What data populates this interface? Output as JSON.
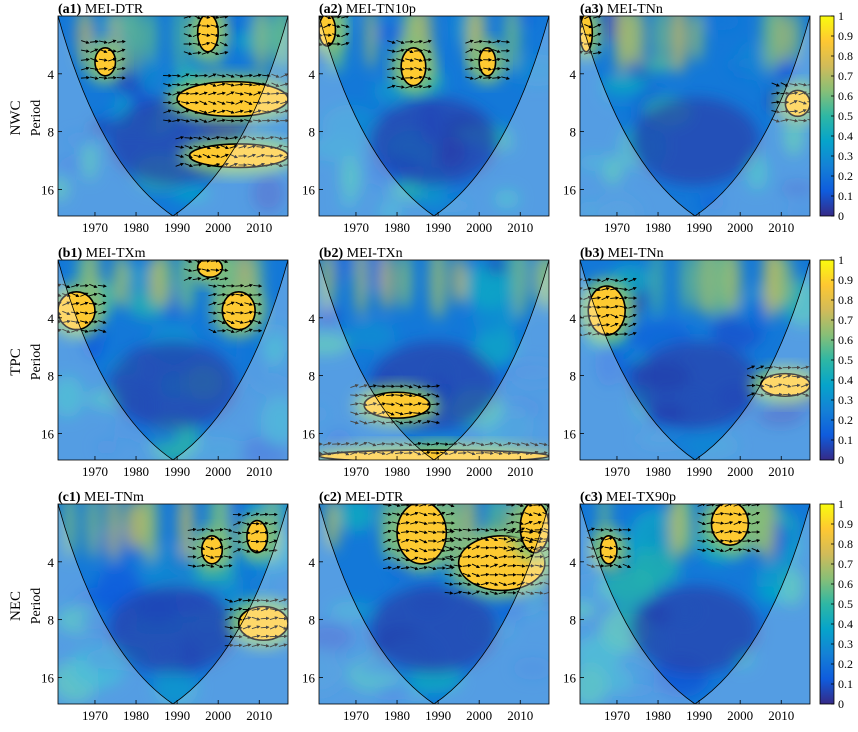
{
  "figure": {
    "row_labels": [
      "NWC",
      "TPC",
      "NEC"
    ],
    "y_axis_label": "Period",
    "colorbar": {
      "ticks": [
        "0",
        "0.1",
        "0.2",
        "0.3",
        "0.4",
        "0.5",
        "0.6",
        "0.7",
        "0.8",
        "0.9",
        "1"
      ]
    },
    "colormap": [
      "#352a87",
      "#0f5cdd",
      "#1481d6",
      "#06a4ca",
      "#2eb7a4",
      "#87bf77",
      "#d1bb59",
      "#fec832",
      "#f9fb0e"
    ]
  },
  "chart_data": [
    {
      "id": "a1",
      "type": "heatmap",
      "title": "(a1) MEI-DTR",
      "tag": "(a1)",
      "name": "MEI-DTR",
      "x_ticks": [
        "1970",
        "1980",
        "1990",
        "2000",
        "2010"
      ],
      "y_ticks": [
        "4",
        "8",
        "16"
      ],
      "xlim": [
        1961,
        2017
      ],
      "ylim": [
        2,
        22
      ],
      "y_scale": "log",
      "colorbar_range": [
        0,
        1
      ],
      "high_coherence_regions": [
        {
          "x": [
            1995,
            2000
          ],
          "period": [
            2,
            3
          ]
        },
        {
          "x": [
            1990,
            2017
          ],
          "period": [
            4.5,
            6.5
          ]
        },
        {
          "x": [
            1993,
            2017
          ],
          "period": [
            9.5,
            12
          ]
        },
        {
          "x": [
            1970,
            1975
          ],
          "period": [
            3,
            4
          ]
        }
      ]
    },
    {
      "id": "a2",
      "type": "heatmap",
      "title": "(a2) MEI-TN10p",
      "tag": "(a2)",
      "name": "MEI-TN10p",
      "x_ticks": [
        "1970",
        "1980",
        "1990",
        "2000",
        "2010"
      ],
      "y_ticks": [
        "4",
        "8",
        "16"
      ],
      "xlim": [
        1961,
        2017
      ],
      "ylim": [
        2,
        22
      ],
      "y_scale": "log",
      "colorbar_range": [
        0,
        1
      ],
      "high_coherence_regions": [
        {
          "x": [
            1981,
            1987
          ],
          "period": [
            3,
            4.5
          ]
        },
        {
          "x": [
            2000,
            2004
          ],
          "period": [
            3,
            4
          ]
        },
        {
          "x": [
            1961,
            1965
          ],
          "period": [
            2,
            2.8
          ]
        }
      ]
    },
    {
      "id": "a3",
      "type": "heatmap",
      "title": "(a3) MEI-TNn",
      "tag": "(a3)",
      "name": "MEI-TNn",
      "x_ticks": [
        "1970",
        "1980",
        "1990",
        "2000",
        "2010"
      ],
      "y_ticks": [
        "4",
        "8",
        "16"
      ],
      "xlim": [
        1961,
        2017
      ],
      "ylim": [
        2,
        22
      ],
      "y_scale": "log",
      "colorbar_range": [
        0,
        1
      ],
      "high_coherence_regions": [
        {
          "x": [
            2011,
            2017
          ],
          "period": [
            5,
            6.5
          ]
        },
        {
          "x": [
            1961,
            1964
          ],
          "period": [
            2,
            3
          ]
        }
      ]
    },
    {
      "id": "b1",
      "type": "heatmap",
      "title": "(b1) MEI-TXm",
      "tag": "(b1)",
      "name": "MEI-TXm",
      "x_ticks": [
        "1970",
        "1980",
        "1990",
        "2000",
        "2010"
      ],
      "y_ticks": [
        "4",
        "8",
        "16"
      ],
      "xlim": [
        1961,
        2017
      ],
      "ylim": [
        2,
        22
      ],
      "y_scale": "log",
      "colorbar_range": [
        0,
        1
      ],
      "high_coherence_regions": [
        {
          "x": [
            1961,
            1970
          ],
          "period": [
            3,
            4.5
          ]
        },
        {
          "x": [
            2001,
            2009
          ],
          "period": [
            3,
            4.5
          ]
        },
        {
          "x": [
            1995,
            2001
          ],
          "period": [
            2,
            2.4
          ]
        }
      ]
    },
    {
      "id": "b2",
      "type": "heatmap",
      "title": "(b2) MEI-TXn",
      "tag": "(b2)",
      "name": "MEI-TXn",
      "x_ticks": [
        "1970",
        "1980",
        "1990",
        "2000",
        "2010"
      ],
      "y_ticks": [
        "4",
        "8",
        "16"
      ],
      "xlim": [
        1961,
        2017
      ],
      "ylim": [
        2,
        22
      ],
      "y_scale": "log",
      "colorbar_range": [
        0,
        1
      ],
      "high_coherence_regions": [
        {
          "x": [
            1972,
            1988
          ],
          "period": [
            10,
            13
          ]
        },
        {
          "x": [
            1961,
            2017
          ],
          "period": [
            20,
            22
          ]
        }
      ]
    },
    {
      "id": "b3",
      "type": "heatmap",
      "title": "(b3) MEI-TNn",
      "tag": "(b3)",
      "name": "MEI-TNn",
      "x_ticks": [
        "1970",
        "1980",
        "1990",
        "2000",
        "2010"
      ],
      "y_ticks": [
        "4",
        "8",
        "16"
      ],
      "xlim": [
        1961,
        2017
      ],
      "ylim": [
        2,
        22
      ],
      "y_scale": "log",
      "colorbar_range": [
        0,
        1
      ],
      "high_coherence_regions": [
        {
          "x": [
            1963,
            1972
          ],
          "period": [
            2.8,
            4.8
          ]
        },
        {
          "x": [
            2005,
            2017
          ],
          "period": [
            8,
            10
          ]
        }
      ]
    },
    {
      "id": "c1",
      "type": "heatmap",
      "title": "(c1) MEI-TNm",
      "tag": "(c1)",
      "name": "MEI-TNm",
      "x_ticks": [
        "1970",
        "1980",
        "1990",
        "2000",
        "2010"
      ],
      "y_ticks": [
        "4",
        "8",
        "16"
      ],
      "xlim": [
        1961,
        2017
      ],
      "ylim": [
        2,
        22
      ],
      "y_scale": "log",
      "colorbar_range": [
        0,
        1
      ],
      "high_coherence_regions": [
        {
          "x": [
            1996,
            2001
          ],
          "period": [
            3,
            4
          ]
        },
        {
          "x": [
            2007,
            2012
          ],
          "period": [
            2.5,
            3.5
          ]
        },
        {
          "x": [
            2005,
            2017
          ],
          "period": [
            7,
            10
          ]
        }
      ]
    },
    {
      "id": "c2",
      "type": "heatmap",
      "title": "(c2) MEI-DTR",
      "tag": "(c2)",
      "name": "MEI-DTR",
      "x_ticks": [
        "1970",
        "1980",
        "1990",
        "2000",
        "2010"
      ],
      "y_ticks": [
        "4",
        "8",
        "16"
      ],
      "xlim": [
        1961,
        2017
      ],
      "ylim": [
        2,
        22
      ],
      "y_scale": "log",
      "colorbar_range": [
        0,
        1
      ],
      "high_coherence_regions": [
        {
          "x": [
            1980,
            1992
          ],
          "period": [
            2,
            4
          ]
        },
        {
          "x": [
            1995,
            2016
          ],
          "period": [
            3,
            5.5
          ]
        },
        {
          "x": [
            2010,
            2017
          ],
          "period": [
            2,
            3.5
          ]
        }
      ]
    },
    {
      "id": "c3",
      "type": "heatmap",
      "title": "(c3) MEI-TX90p",
      "tag": "(c3)",
      "name": "MEI-TX90p",
      "x_ticks": [
        "1970",
        "1980",
        "1990",
        "2000",
        "2010"
      ],
      "y_ticks": [
        "4",
        "8",
        "16"
      ],
      "xlim": [
        1961,
        2017
      ],
      "ylim": [
        2,
        22
      ],
      "y_scale": "log",
      "colorbar_range": [
        0,
        1
      ],
      "high_coherence_regions": [
        {
          "x": [
            1993,
            2002
          ],
          "period": [
            2,
            3.2
          ]
        },
        {
          "x": [
            1966,
            1970
          ],
          "period": [
            3,
            4
          ]
        }
      ]
    }
  ]
}
